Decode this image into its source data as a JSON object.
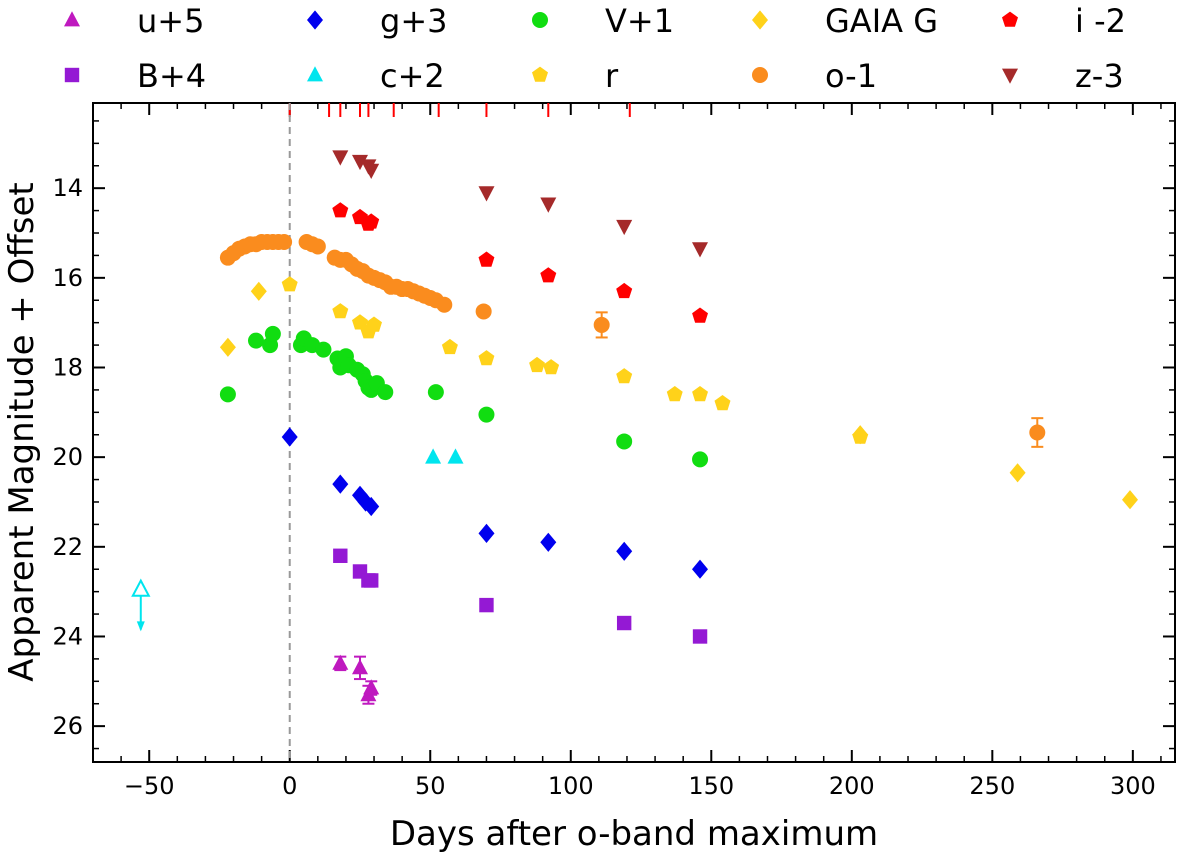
{
  "chart_data": {
    "type": "scatter",
    "xlabel": "Days after o-band maximum",
    "ylabel": "Apparent Magnitude + Offset",
    "xlim": [
      -70,
      315
    ],
    "ylim": [
      26.8,
      12.1
    ],
    "y_inverted": true,
    "xticks": [
      -50,
      0,
      50,
      100,
      150,
      200,
      250,
      300
    ],
    "yticks": [
      14,
      16,
      18,
      20,
      22,
      24,
      26
    ],
    "grid": false,
    "legend": "top, outside plot, 5 columns x 2 rows",
    "vline_x": 0,
    "spectra_epochs": [
      0,
      14,
      18,
      25,
      28,
      37,
      53,
      70,
      92,
      121
    ],
    "series": [
      {
        "name": "u+5",
        "marker": "triangle",
        "color": "#bf19bf",
        "points": [
          [
            18,
            24.6
          ],
          [
            25,
            24.7
          ],
          [
            28,
            25.3
          ],
          [
            29,
            25.15
          ]
        ],
        "err": [
          0.15,
          0.25,
          0.2,
          0.15
        ]
      },
      {
        "name": "B+4",
        "marker": "square",
        "color": "#9419d4",
        "points": [
          [
            18,
            22.2
          ],
          [
            25,
            22.55
          ],
          [
            28,
            22.75
          ],
          [
            29,
            22.75
          ],
          [
            70,
            23.3
          ],
          [
            119,
            23.7
          ],
          [
            146,
            24.0
          ]
        ]
      },
      {
        "name": "g+3",
        "marker": "diamond",
        "color": "#0000ee",
        "points": [
          [
            0,
            19.55
          ],
          [
            18,
            20.6
          ],
          [
            25,
            20.85
          ],
          [
            27,
            21.0
          ],
          [
            29,
            21.1
          ],
          [
            70,
            21.7
          ],
          [
            92,
            21.9
          ],
          [
            119,
            22.1
          ],
          [
            146,
            22.5
          ]
        ]
      },
      {
        "name": "c+2",
        "marker": "triangle",
        "color": "#00e5ee",
        "points": [
          [
            51,
            20.0
          ],
          [
            59,
            20.0
          ]
        ]
      },
      {
        "name": "c+2 limit",
        "marker": "triangle-open-arrow",
        "color": "#00e5ee",
        "points": [
          [
            -53,
            22.95
          ]
        ]
      },
      {
        "name": "V+1",
        "marker": "circle",
        "color": "#11dd11",
        "points": [
          [
            -22,
            18.6
          ],
          [
            -12,
            17.4
          ],
          [
            -7,
            17.5
          ],
          [
            -6,
            17.25
          ],
          [
            4,
            17.5
          ],
          [
            5,
            17.35
          ],
          [
            8,
            17.5
          ],
          [
            12,
            17.6
          ],
          [
            17,
            17.8
          ],
          [
            18,
            18.0
          ],
          [
            20,
            17.75
          ],
          [
            21,
            17.95
          ],
          [
            24,
            18.05
          ],
          [
            26,
            18.15
          ],
          [
            27,
            18.3
          ],
          [
            28,
            18.45
          ],
          [
            29,
            18.5
          ],
          [
            31,
            18.35
          ],
          [
            34,
            18.55
          ],
          [
            52,
            18.55
          ],
          [
            70,
            19.05
          ],
          [
            119,
            19.65
          ],
          [
            146,
            20.05
          ]
        ]
      },
      {
        "name": "GAIA G",
        "marker": "diamond",
        "color": "#ffd21a",
        "points": [
          [
            -22,
            17.55
          ],
          [
            -11,
            16.3
          ],
          [
            203,
            19.5
          ],
          [
            259,
            20.35
          ],
          [
            299,
            20.95
          ]
        ]
      },
      {
        "name": "r",
        "marker": "pentagon",
        "color": "#ffd21a",
        "points": [
          [
            0,
            16.15
          ],
          [
            18,
            16.75
          ],
          [
            25,
            17.0
          ],
          [
            28,
            17.2
          ],
          [
            30,
            17.05
          ],
          [
            57,
            17.55
          ],
          [
            70,
            17.8
          ],
          [
            88,
            17.95
          ],
          [
            93,
            18.0
          ],
          [
            119,
            18.2
          ],
          [
            137,
            18.6
          ],
          [
            146,
            18.6
          ],
          [
            154,
            18.8
          ],
          [
            203,
            19.55
          ]
        ]
      },
      {
        "name": "o-1",
        "marker": "circle",
        "color": "#fa8c1e",
        "points": [
          [
            -22,
            15.55
          ],
          [
            -20,
            15.45
          ],
          [
            -18,
            15.35
          ],
          [
            -16,
            15.3
          ],
          [
            -14,
            15.25
          ],
          [
            -12,
            15.25
          ],
          [
            -10,
            15.2
          ],
          [
            -8,
            15.2
          ],
          [
            -6,
            15.2
          ],
          [
            -4,
            15.2
          ],
          [
            -2,
            15.2
          ],
          [
            6,
            15.2
          ],
          [
            8,
            15.25
          ],
          [
            10,
            15.3
          ],
          [
            16,
            15.55
          ],
          [
            18,
            15.6
          ],
          [
            20,
            15.6
          ],
          [
            22,
            15.7
          ],
          [
            24,
            15.8
          ],
          [
            26,
            15.85
          ],
          [
            28,
            15.95
          ],
          [
            30,
            16.0
          ],
          [
            32,
            16.05
          ],
          [
            34,
            16.1
          ],
          [
            36,
            16.2
          ],
          [
            38,
            16.2
          ],
          [
            40,
            16.25
          ],
          [
            42,
            16.25
          ],
          [
            44,
            16.3
          ],
          [
            46,
            16.35
          ],
          [
            48,
            16.4
          ],
          [
            50,
            16.45
          ],
          [
            52,
            16.5
          ],
          [
            55,
            16.6
          ],
          [
            69,
            16.75
          ],
          [
            111,
            17.05
          ],
          [
            266,
            19.45
          ]
        ],
        "err": [
          0,
          0,
          0,
          0,
          0,
          0,
          0,
          0,
          0,
          0,
          0,
          0,
          0,
          0,
          0,
          0,
          0,
          0,
          0,
          0,
          0,
          0,
          0,
          0,
          0,
          0,
          0,
          0,
          0,
          0,
          0,
          0,
          0,
          0,
          0,
          0.28,
          0.32
        ]
      },
      {
        "name": "i -2",
        "marker": "pentagon",
        "color": "#ff0000",
        "points": [
          [
            18,
            14.5
          ],
          [
            25,
            14.65
          ],
          [
            28,
            14.8
          ],
          [
            29,
            14.75
          ],
          [
            70,
            15.6
          ],
          [
            92,
            15.95
          ],
          [
            119,
            16.3
          ],
          [
            146,
            16.85
          ]
        ]
      },
      {
        "name": "z-3",
        "marker": "triangle-down",
        "color": "#a52a2a",
        "points": [
          [
            18,
            13.3
          ],
          [
            25,
            13.4
          ],
          [
            28,
            13.5
          ],
          [
            29,
            13.6
          ],
          [
            70,
            14.1
          ],
          [
            92,
            14.35
          ],
          [
            119,
            14.85
          ],
          [
            146,
            15.35
          ]
        ]
      }
    ]
  }
}
